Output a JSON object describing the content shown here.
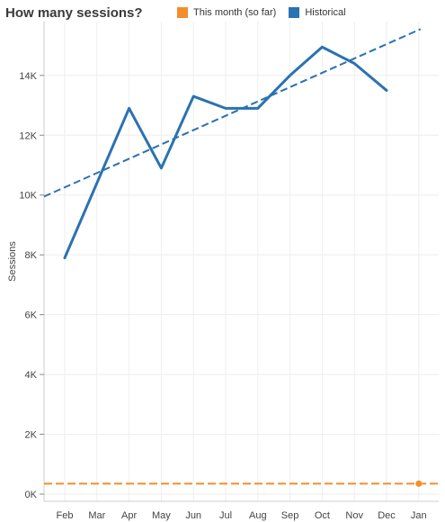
{
  "title": "How many sessions?",
  "legend": [
    {
      "label": "This month (so far)",
      "color": "#f28e2b"
    },
    {
      "label": "Historical",
      "color": "#2a72b2"
    }
  ],
  "chart_data": {
    "type": "line",
    "title": "How many sessions?",
    "xlabel": "",
    "ylabel": "Sessions",
    "categories": [
      "Feb",
      "Mar",
      "Apr",
      "May",
      "Jun",
      "Jul",
      "Aug",
      "Sep",
      "Oct",
      "Nov",
      "Dec",
      "Jan"
    ],
    "ylim": [
      0,
      15800
    ],
    "yticks": [
      0,
      2000,
      4000,
      6000,
      8000,
      10000,
      12000,
      14000
    ],
    "ytick_labels": [
      "0K",
      "2K",
      "4K",
      "6K",
      "8K",
      "10K",
      "12K",
      "14K"
    ],
    "grid": true,
    "legend_position": "top",
    "series": [
      {
        "name": "Historical",
        "color": "#2a72b2",
        "values": [
          7900,
          10400,
          12900,
          10900,
          13300,
          12900,
          12900,
          14000,
          14950,
          14400,
          13500,
          null
        ]
      },
      {
        "name": "This month (so far)",
        "color": "#f28e2b",
        "values": [
          null,
          null,
          null,
          null,
          null,
          null,
          null,
          null,
          null,
          null,
          null,
          350
        ]
      }
    ],
    "trend_lines": [
      {
        "series": "Historical",
        "style": "dashed",
        "color": "#2a72b2",
        "x_range": [
          "Feb",
          "Jan"
        ],
        "start": 9950,
        "end": 15550
      },
      {
        "series": "This month (so far)",
        "style": "dashed",
        "color": "#f28e2b",
        "level": 350
      }
    ]
  }
}
